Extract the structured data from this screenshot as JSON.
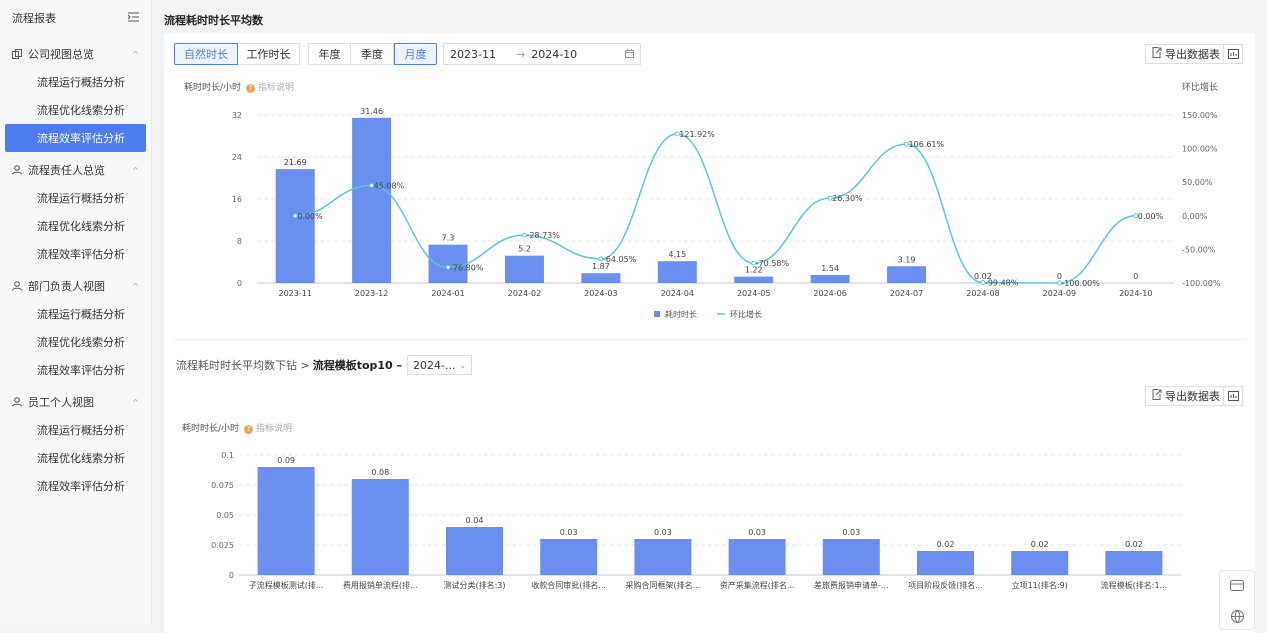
{
  "sidebar": {
    "title": "流程报表",
    "groups": [
      {
        "label": "公司视图总览",
        "items": [
          "流程运行概括分析",
          "流程优化线索分析",
          "流程效率评估分析"
        ]
      },
      {
        "label": "流程责任人总览",
        "items": [
          "流程运行概括分析",
          "流程优化线索分析",
          "流程效率评估分析"
        ]
      },
      {
        "label": "部门负责人视图",
        "items": [
          "流程运行概括分析",
          "流程优化线索分析",
          "流程效率评估分析"
        ]
      },
      {
        "label": "员工个人视图",
        "items": [
          "流程运行概括分析",
          "流程优化线索分析",
          "流程效率评估分析"
        ]
      }
    ]
  },
  "page": {
    "title": "流程耗时时长平均数"
  },
  "toolbar": {
    "duration_tabs": [
      "自然时长",
      "工作时长"
    ],
    "period_tabs": [
      "年度",
      "季度",
      "月度"
    ],
    "date_start": "2023-11",
    "date_end": "2024-10",
    "export_label": "导出数据表"
  },
  "chart1_labels": {
    "left_axis": "耗时时长/小时",
    "help": "指标说明",
    "right_axis": "环比增长",
    "legend_bar": "耗时时长",
    "legend_line": "环比增长"
  },
  "drill": {
    "prefix": "流程耗时时长平均数下钻 >",
    "bold": "流程模板top10 –",
    "select": "2024-..."
  },
  "chart2_labels": {
    "left_axis": "耗时时长/小时",
    "help": "指标说明"
  },
  "colors": {
    "accent": "#4c7cf0",
    "bar": "#6a8ff0",
    "line": "#5ac8d8"
  },
  "chart_data": [
    {
      "type": "bar",
      "title": "流程耗时时长平均数",
      "categories": [
        "2023-11",
        "2023-12",
        "2024-01",
        "2024-02",
        "2024-03",
        "2024-04",
        "2024-05",
        "2024-06",
        "2024-07",
        "2024-08",
        "2024-09",
        "2024-10"
      ],
      "series": [
        {
          "name": "耗时时长",
          "type": "bar",
          "values": [
            21.69,
            31.46,
            7.3,
            5.2,
            1.87,
            4.15,
            1.22,
            1.54,
            3.19,
            0.02,
            0,
            0
          ]
        },
        {
          "name": "环比增长",
          "type": "line",
          "values": [
            0.0,
            45.08,
            -76.8,
            -28.73,
            -64.05,
            121.92,
            -70.58,
            26.3,
            106.61,
            -99.48,
            -100.0,
            0.0
          ],
          "labels": [
            "0.00%",
            "45.08%",
            "-76.80%",
            "-28.73%",
            "-64.05%",
            "121.92%",
            "-70.58%",
            "26.30%",
            "106.61%",
            "-99.48%",
            "-100.00%",
            "0.00%"
          ]
        }
      ],
      "bar_labels": [
        "21.69",
        "31.46",
        "7.3",
        "5.2",
        "1.87",
        "4.15",
        "1.22",
        "1.54",
        "3.19",
        "0.02",
        "0",
        "0"
      ],
      "ylim": [
        0,
        32
      ],
      "yticks": [
        "0",
        "8",
        "16",
        "24",
        "32"
      ],
      "y2lim": [
        -100,
        150
      ],
      "y2ticks": [
        "-100.00%",
        "-50.00%",
        "0.00%",
        "50.00%",
        "100.00%",
        "150.00%"
      ]
    },
    {
      "type": "bar",
      "title": "流程模板top10",
      "categories": [
        "子流程模板测试(排...",
        "费用报销单流程(排...",
        "测试分类(排名:3)",
        "收款合同审批(排名...",
        "采购合同框架(排名...",
        "资产采集流程(排名...",
        "差旅费报销申请单-...",
        "项目阶段反馈(排名...",
        "立项11(排名:9)",
        "流程模板(排名:1..."
      ],
      "values": [
        0.09,
        0.08,
        0.04,
        0.03,
        0.03,
        0.03,
        0.03,
        0.02,
        0.02,
        0.02
      ],
      "bar_labels": [
        "0.09",
        "0.08",
        "0.04",
        "0.03",
        "0.03",
        "0.03",
        "0.03",
        "0.02",
        "0.02",
        "0.02"
      ],
      "ylim": [
        0,
        0.1
      ],
      "yticks": [
        "0",
        "0.025",
        "0.05",
        "0.075",
        "0.1"
      ]
    }
  ]
}
